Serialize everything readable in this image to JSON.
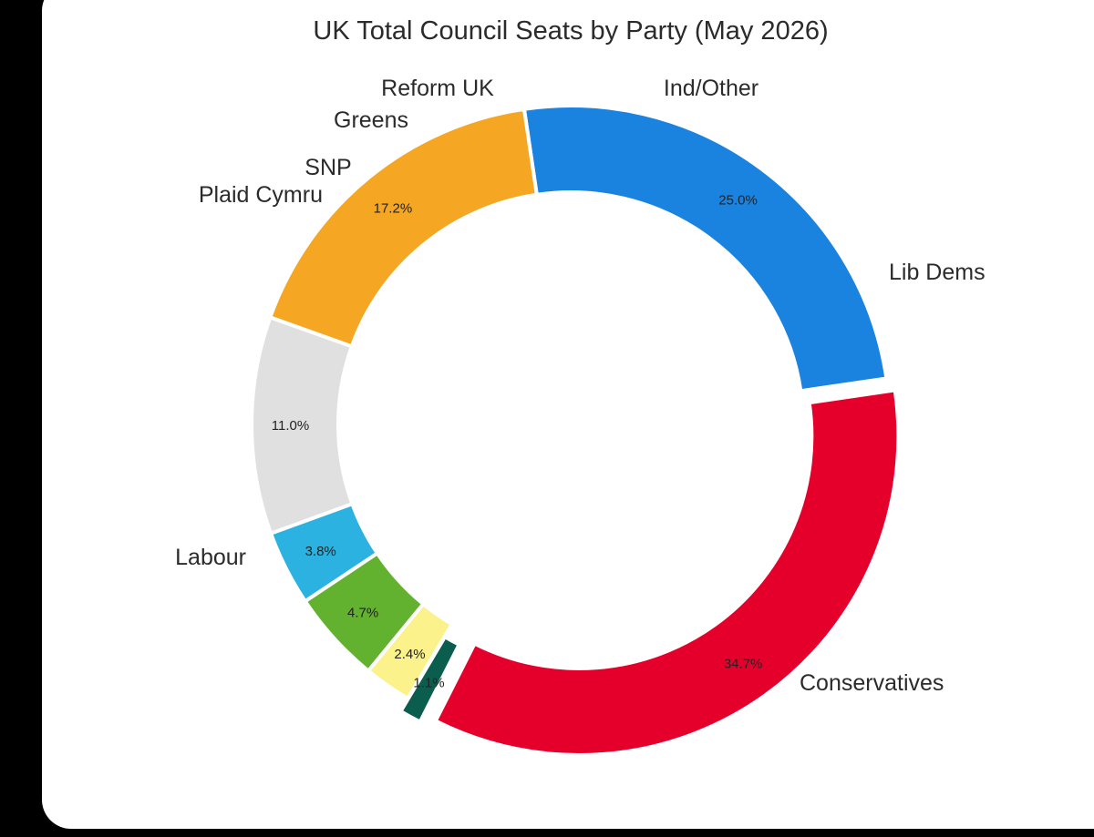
{
  "chart_data": {
    "type": "pie",
    "variant": "donut",
    "title": "UK Total Council Seats by Party (May 2026)",
    "start_angle_deg": 8.3,
    "direction": "counterclockwise",
    "slices": [
      {
        "name": "Conservatives",
        "value": 25.0,
        "label": "25.0%",
        "color": "#1a83e0"
      },
      {
        "name": "Lib Dems",
        "value": 17.2,
        "label": "17.2%",
        "color": "#f5a623"
      },
      {
        "name": "Ind/Other",
        "value": 11.0,
        "label": "11.0%",
        "color": "#e0e0e0"
      },
      {
        "name": "Reform UK",
        "value": 3.8,
        "label": "3.8%",
        "color": "#2bb2e1"
      },
      {
        "name": "Greens",
        "value": 4.7,
        "label": "4.7%",
        "color": "#62b22f"
      },
      {
        "name": "SNP",
        "value": 2.4,
        "label": "2.4%",
        "color": "#fbf28b"
      },
      {
        "name": "Plaid Cymru",
        "value": 1.1,
        "label": "1.1%",
        "color": "#0b5d4e",
        "exploded": true
      },
      {
        "name": "Labour",
        "value": 34.7,
        "label": "34.7%",
        "color": "#e4002b",
        "exploded": true
      }
    ]
  }
}
